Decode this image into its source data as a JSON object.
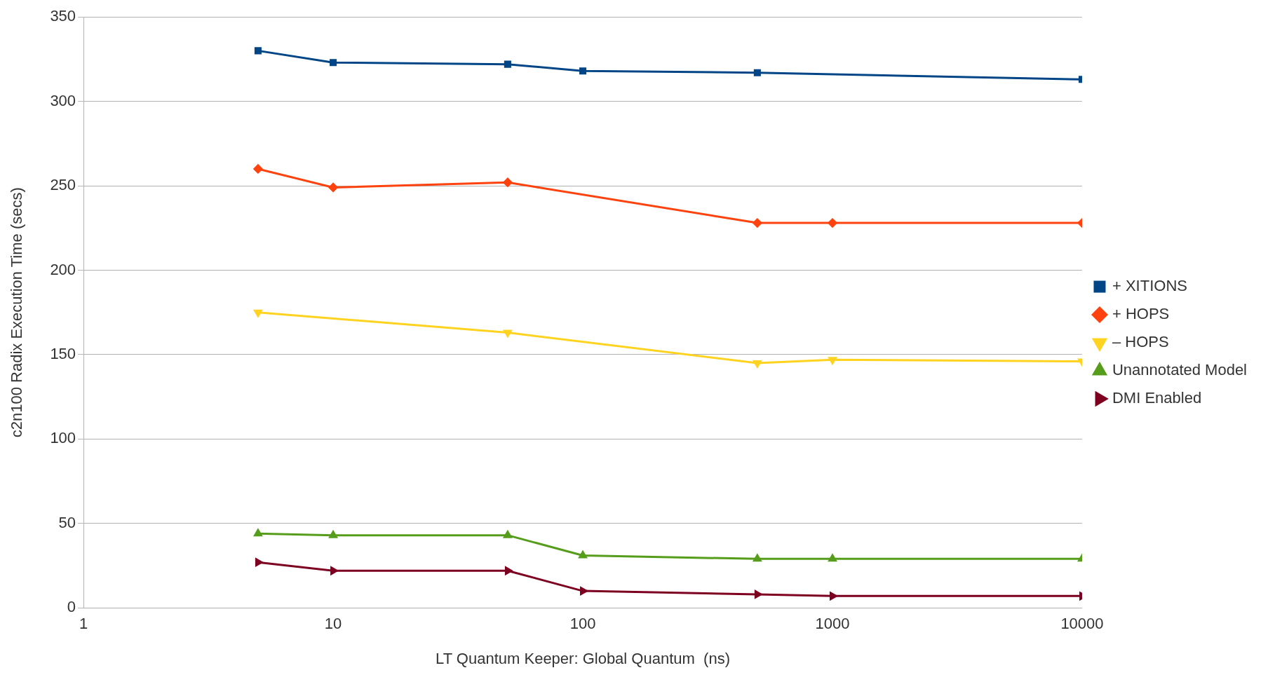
{
  "chart_data": {
    "type": "line",
    "xlabel": "LT Quantum Keeper: Global Quantum  (ns)",
    "ylabel": "c2n100 Radix Execution Time (secs)",
    "log": "x",
    "xlim": [
      1,
      10000
    ],
    "xticks": [
      1,
      10,
      100,
      1000,
      10000
    ],
    "ylim": [
      0,
      350
    ],
    "yticks": [
      0,
      50,
      100,
      150,
      200,
      250,
      300,
      350
    ],
    "grid": "y",
    "legend": "right",
    "line_style": "solid",
    "series": [
      {
        "name": "+ XITIONS",
        "color": "#004586",
        "marker": "square",
        "x": [
          5,
          10,
          50,
          100,
          500,
          10000
        ],
        "values": [
          330,
          323,
          322,
          318,
          317,
          313
        ]
      },
      {
        "name": "+ HOPS",
        "color": "#ff420e",
        "marker": "diamond",
        "x": [
          5,
          10,
          50,
          500,
          1000,
          10000
        ],
        "values": [
          260,
          249,
          252,
          228,
          228,
          228
        ]
      },
      {
        "name": "– HOPS",
        "color": "#ffd320",
        "marker": "triangle-down",
        "x": [
          5,
          50,
          500,
          1000,
          10000
        ],
        "values": [
          175,
          163,
          145,
          147,
          146
        ]
      },
      {
        "name": "Unannotated Model",
        "color": "#579d1c",
        "marker": "triangle",
        "x": [
          5,
          10,
          50,
          100,
          500,
          1000,
          10000
        ],
        "values": [
          44,
          43,
          43,
          31,
          29,
          29,
          29
        ]
      },
      {
        "name": "DMI Enabled",
        "color": "#7e0021",
        "marker": "triangle-right",
        "x": [
          5,
          10,
          50,
          100,
          500,
          1000,
          10000
        ],
        "values": [
          27,
          22,
          22,
          10,
          8,
          7,
          7
        ]
      }
    ]
  }
}
